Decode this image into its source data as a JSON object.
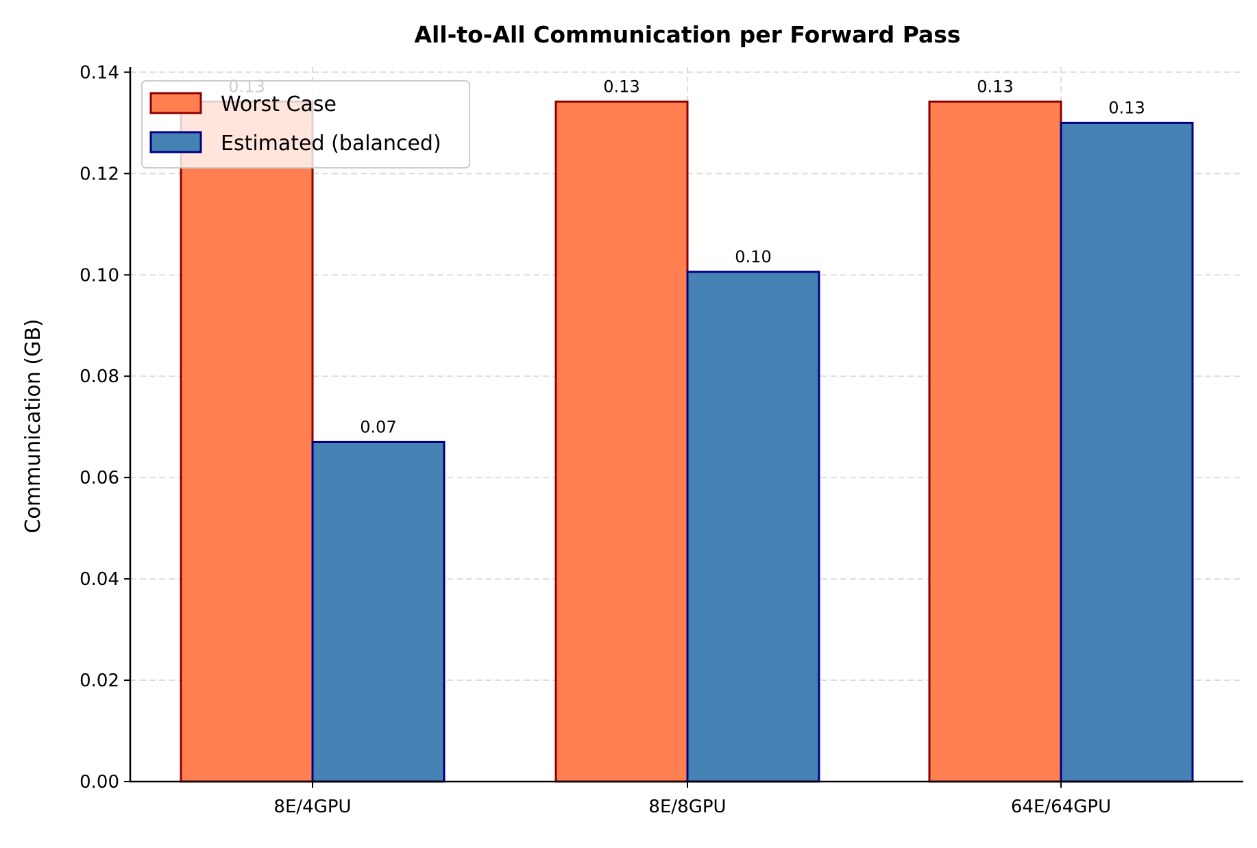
{
  "chart_data": {
    "type": "bar",
    "title": "All-to-All Communication per Forward Pass",
    "xlabel": "",
    "ylabel": "Communication (GB)",
    "categories": [
      "8E/4GPU",
      "8E/8GPU",
      "64E/64GPU"
    ],
    "series": [
      {
        "name": "Worst Case",
        "values": [
          0.1342,
          0.1342,
          0.1342
        ],
        "labels": [
          "0.13",
          "0.13",
          "0.13"
        ],
        "color": "#ff7f50",
        "edge": "#8b0000"
      },
      {
        "name": "Estimated (balanced)",
        "values": [
          0.067,
          0.1006,
          0.13
        ],
        "labels": [
          "0.07",
          "0.10",
          "0.13"
        ],
        "color": "#4682b4",
        "edge": "#000080"
      }
    ],
    "ylim": [
      0,
      0.141
    ],
    "yticks": [
      "0.00",
      "0.02",
      "0.04",
      "0.06",
      "0.08",
      "0.10",
      "0.12",
      "0.14"
    ],
    "grid": true,
    "legend": "top-left"
  }
}
